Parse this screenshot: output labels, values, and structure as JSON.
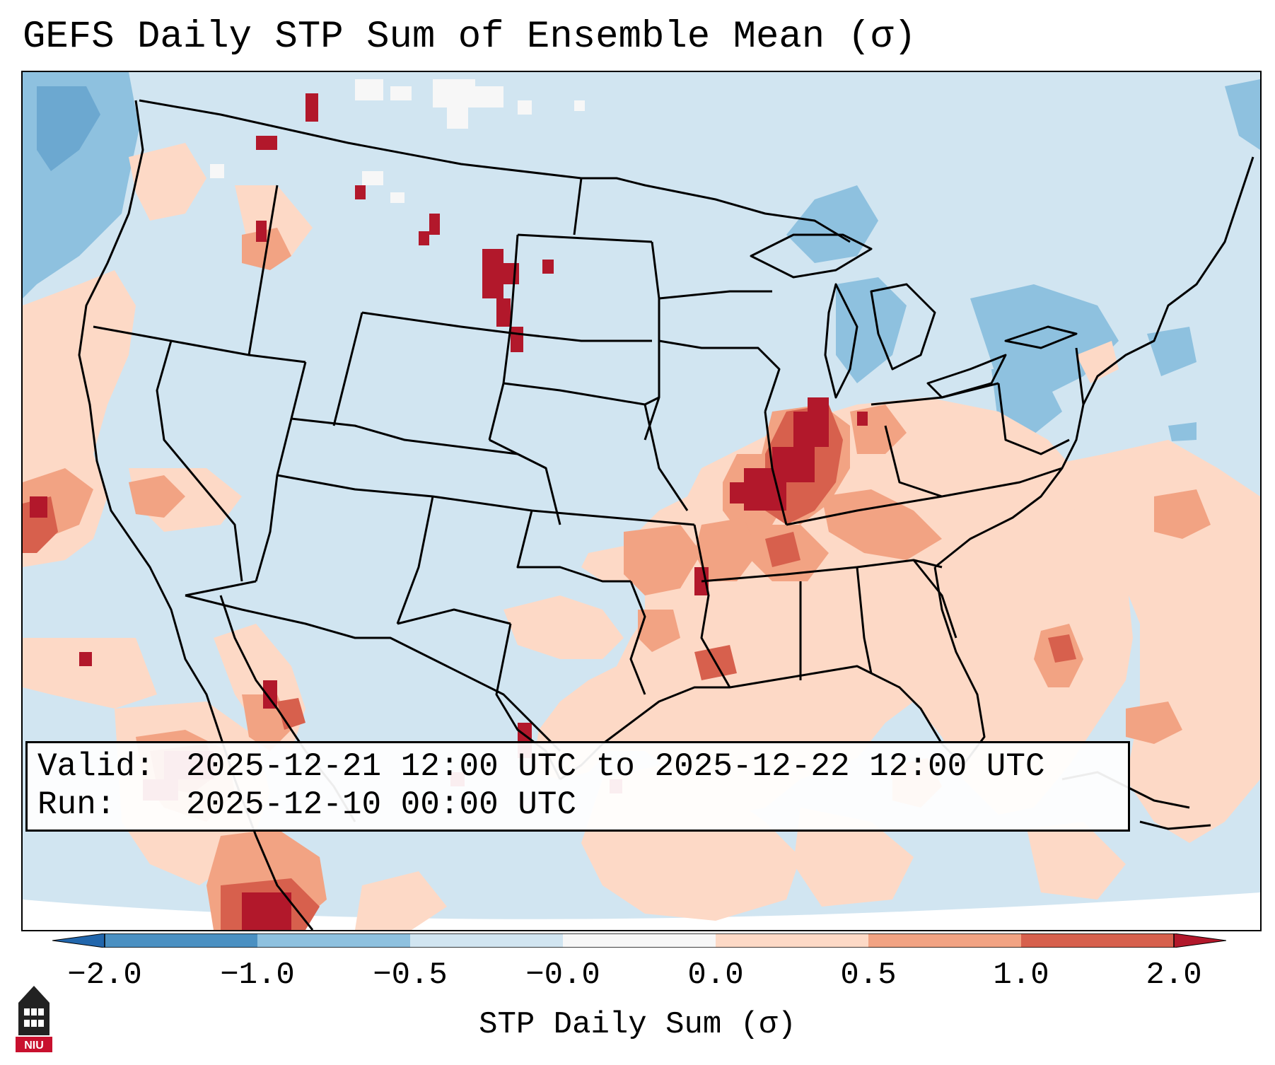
{
  "title": "GEFS Daily STP Sum of Ensemble Mean (σ)",
  "info": {
    "valid_label": "Valid:",
    "valid_value": "2025-12-21 12:00 UTC to 2025-12-22 12:00 UTC",
    "run_label": "Run:",
    "run_value": "2025-12-10 00:00 UTC"
  },
  "colorbar": {
    "label": "STP Daily Sum (σ)",
    "ticks": [
      "−2.0",
      "−1.0",
      "−0.5",
      "−0.0",
      "0.0",
      "0.5",
      "1.0",
      "2.0"
    ],
    "bins": [
      "#4a90c2",
      "#8ec1df",
      "#d1e5f1",
      "#f7f7f7",
      "#fdd9c6",
      "#f2a383",
      "#d7604d"
    ],
    "under_color": "#2166ac",
    "over_color": "#b2182b"
  },
  "colors": {
    "base_fill": "#d1e5f1",
    "light_pos": "#fdd9c6",
    "mid_pos": "#f2a383",
    "high_pos": "#d7604d",
    "extreme_pos": "#b2182b",
    "light_neg": "#8ec1df",
    "mid_neg": "#4a90c2",
    "white_bin": "#f7f7f7"
  },
  "logo": {
    "text": "NIU",
    "icon": "niu-logo-icon"
  }
}
